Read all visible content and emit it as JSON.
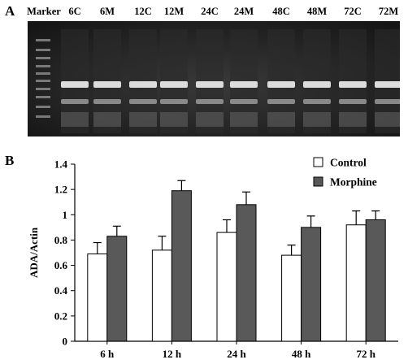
{
  "panel_a": {
    "label": "A",
    "lanes": [
      "Marker",
      "6C",
      "6M",
      "12C",
      "12M",
      "24C",
      "24M",
      "48C",
      "48M",
      "72C",
      "72M"
    ]
  },
  "panel_b": {
    "label": "B"
  },
  "chart_data": {
    "type": "bar",
    "categories": [
      "6 h",
      "12 h",
      "24 h",
      "48 h",
      "72 h"
    ],
    "series": [
      {
        "name": "Control",
        "values": [
          0.69,
          0.72,
          0.86,
          0.68,
          0.92
        ],
        "errors": [
          0.09,
          0.11,
          0.1,
          0.08,
          0.11
        ],
        "color": "#ffffff"
      },
      {
        "name": "Morphine",
        "values": [
          0.83,
          1.19,
          1.08,
          0.9,
          0.96
        ],
        "errors": [
          0.08,
          0.08,
          0.1,
          0.09,
          0.07
        ],
        "color": "#595959"
      }
    ],
    "ylabel": "ADA/Actin",
    "ylim": [
      0,
      1.4
    ],
    "yticks": [
      "0",
      "0.2",
      "0.4",
      "0.6",
      "0.8",
      "1",
      "1.2",
      "1.4"
    ],
    "legend": "top-right",
    "grid": false
  }
}
